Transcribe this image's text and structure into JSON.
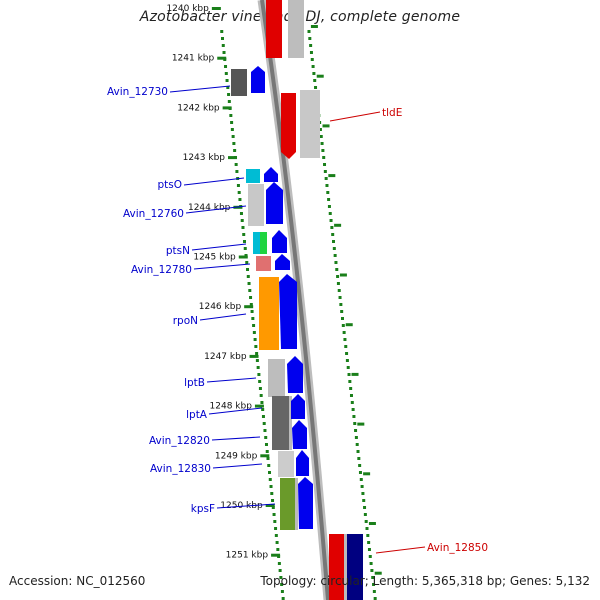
{
  "title": "Azotobacter vinelandii DJ, complete genome",
  "footer": {
    "accession": "Accession: NC_012560",
    "topology": "Topology: circular; Length: 5,365,318 bp; Genes: 5,132"
  },
  "colors": {
    "axis_tick": "#1a7f1a",
    "left_label": "#0000cc",
    "right_label": "#cc0000",
    "backbone": "#888888"
  },
  "kbp_ticks": [
    "1240 kbp",
    "1241 kbp",
    "1242 kbp",
    "1243 kbp",
    "1244 kbp",
    "1245 kbp",
    "1246 kbp",
    "1247 kbp",
    "1248 kbp",
    "1249 kbp",
    "1250 kbp",
    "1251 kbp"
  ],
  "left_labels": [
    "Avin_12730",
    "ptsO",
    "Avin_12760",
    "ptsN",
    "Avin_12780",
    "rpoN",
    "lptB",
    "lptA",
    "Avin_12820",
    "Avin_12830",
    "kpsF"
  ],
  "right_labels": [
    "tldE",
    "Avin_12850"
  ]
}
